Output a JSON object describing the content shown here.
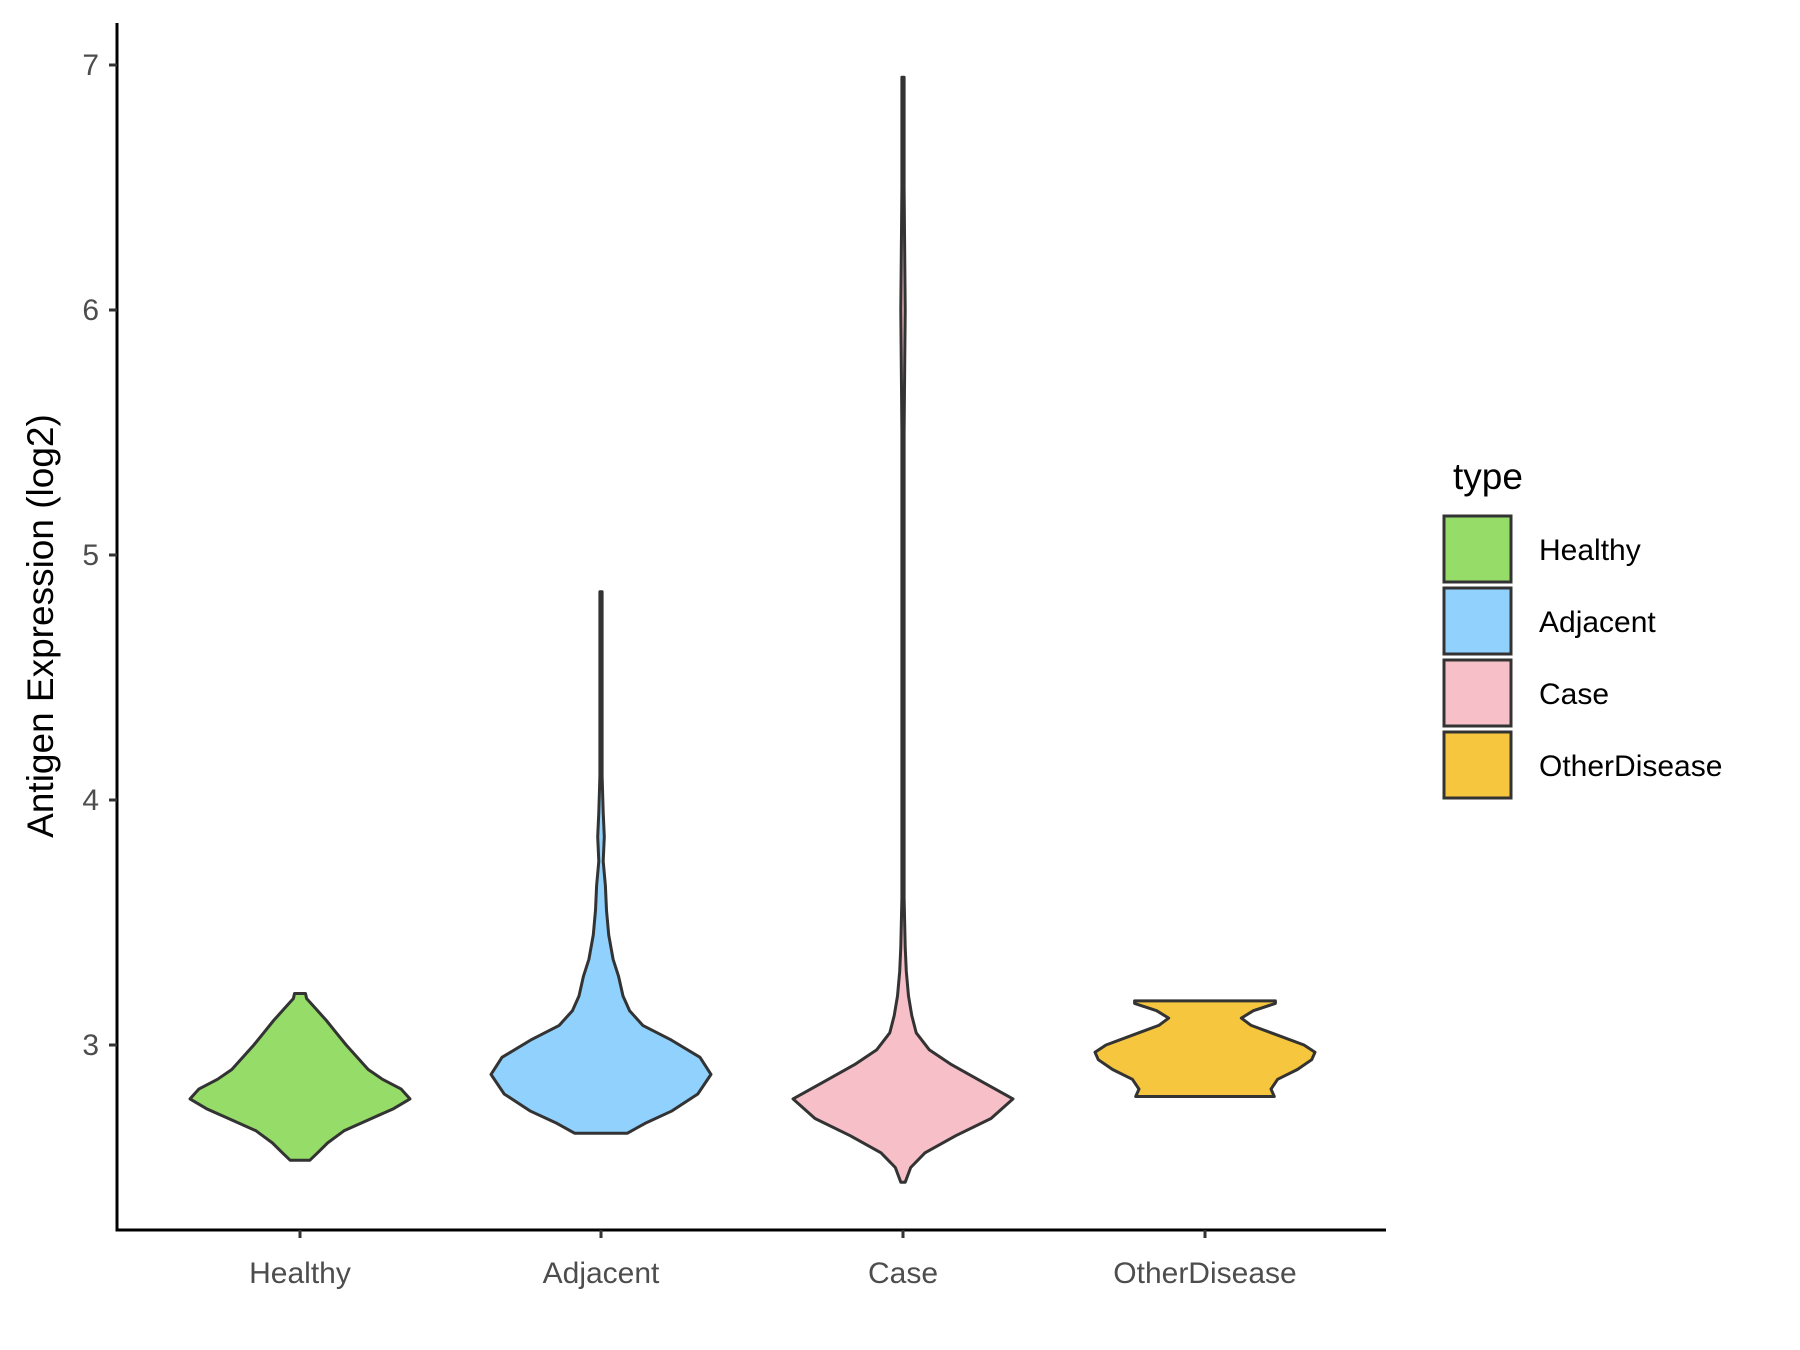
{
  "chart_data": {
    "type": "violin",
    "title": "",
    "xlabel": "",
    "ylabel": "Antigen Expression (log2)",
    "ylim": [
      2.2,
      7.2
    ],
    "yticks": [
      3,
      4,
      5,
      6,
      7
    ],
    "categories": [
      "Healthy",
      "Adjacent",
      "Case",
      "OtherDisease"
    ],
    "legend": {
      "title": "type",
      "position": "right",
      "entries": [
        {
          "label": "Healthy",
          "color": "#95dd68"
        },
        {
          "label": "Adjacent",
          "color": "#90d1fd"
        },
        {
          "label": "Case",
          "color": "#f7c0c9"
        },
        {
          "label": "OtherDisease",
          "color": "#f6c73e"
        }
      ]
    },
    "series": [
      {
        "name": "Healthy",
        "color": "#95dd68",
        "min": 2.53,
        "max": 3.21,
        "profile": [
          [
            2.53,
            0.09
          ],
          [
            2.56,
            0.16
          ],
          [
            2.6,
            0.25
          ],
          [
            2.65,
            0.4
          ],
          [
            2.7,
            0.65
          ],
          [
            2.74,
            0.85
          ],
          [
            2.78,
            1.0
          ],
          [
            2.82,
            0.92
          ],
          [
            2.86,
            0.75
          ],
          [
            2.9,
            0.62
          ],
          [
            2.95,
            0.52
          ],
          [
            3.0,
            0.42
          ],
          [
            3.05,
            0.33
          ],
          [
            3.1,
            0.24
          ],
          [
            3.15,
            0.14
          ],
          [
            3.19,
            0.06
          ],
          [
            3.21,
            0.05
          ]
        ]
      },
      {
        "name": "Adjacent",
        "color": "#90d1fd",
        "min": 2.64,
        "max": 4.85,
        "profile": [
          [
            2.64,
            0.24
          ],
          [
            2.68,
            0.4
          ],
          [
            2.73,
            0.64
          ],
          [
            2.8,
            0.88
          ],
          [
            2.88,
            1.0
          ],
          [
            2.95,
            0.9
          ],
          [
            3.02,
            0.64
          ],
          [
            3.08,
            0.38
          ],
          [
            3.14,
            0.26
          ],
          [
            3.2,
            0.2
          ],
          [
            3.28,
            0.16
          ],
          [
            3.35,
            0.11
          ],
          [
            3.45,
            0.07
          ],
          [
            3.55,
            0.05
          ],
          [
            3.65,
            0.04
          ],
          [
            3.75,
            0.02
          ],
          [
            3.85,
            0.03
          ],
          [
            3.95,
            0.02
          ],
          [
            4.1,
            0.01
          ],
          [
            4.5,
            0.01
          ],
          [
            4.85,
            0.01
          ]
        ]
      },
      {
        "name": "Case",
        "color": "#f7c0c9",
        "min": 2.44,
        "max": 6.95,
        "profile": [
          [
            2.44,
            0.02
          ],
          [
            2.5,
            0.07
          ],
          [
            2.56,
            0.2
          ],
          [
            2.63,
            0.48
          ],
          [
            2.7,
            0.8
          ],
          [
            2.78,
            1.0
          ],
          [
            2.85,
            0.72
          ],
          [
            2.92,
            0.44
          ],
          [
            2.98,
            0.24
          ],
          [
            3.05,
            0.12
          ],
          [
            3.12,
            0.08
          ],
          [
            3.2,
            0.05
          ],
          [
            3.3,
            0.03
          ],
          [
            3.4,
            0.02
          ],
          [
            3.6,
            0.01
          ],
          [
            4.0,
            0.01
          ],
          [
            4.5,
            0.01
          ],
          [
            5.0,
            0.01
          ],
          [
            5.5,
            0.01
          ],
          [
            6.0,
            0.02
          ],
          [
            6.5,
            0.01
          ],
          [
            6.95,
            0.01
          ]
        ]
      },
      {
        "name": "OtherDisease",
        "color": "#f6c73e",
        "min": 2.79,
        "max": 3.18,
        "profile": [
          [
            2.79,
            0.63
          ],
          [
            2.82,
            0.6
          ],
          [
            2.86,
            0.66
          ],
          [
            2.9,
            0.84
          ],
          [
            2.94,
            0.97
          ],
          [
            2.97,
            1.0
          ],
          [
            3.0,
            0.9
          ],
          [
            3.04,
            0.66
          ],
          [
            3.08,
            0.42
          ],
          [
            3.11,
            0.33
          ],
          [
            3.14,
            0.44
          ],
          [
            3.17,
            0.64
          ],
          [
            3.18,
            0.64
          ]
        ]
      }
    ]
  }
}
